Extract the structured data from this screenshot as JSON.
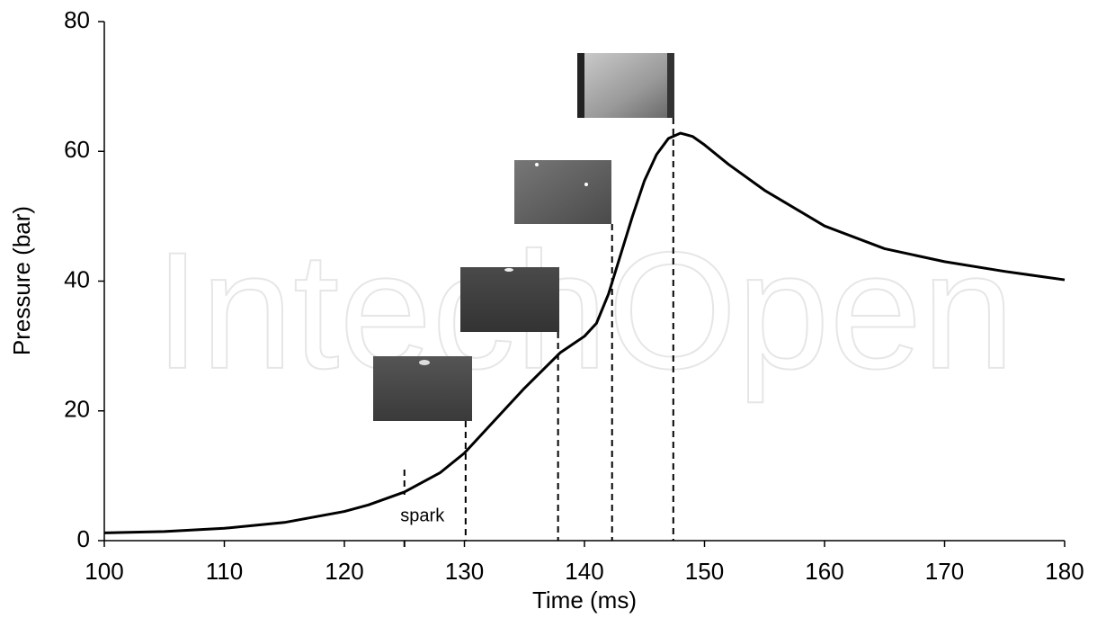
{
  "chart_data": {
    "type": "line",
    "x_label": "Time (ms)",
    "y_label": "Pressure (bar)",
    "xlim": [
      100,
      180
    ],
    "xticks": [
      100,
      110,
      120,
      130,
      140,
      150,
      160,
      170,
      180
    ],
    "ylim": [
      0,
      80
    ],
    "yticks": [
      0,
      20,
      40,
      60,
      80
    ],
    "x": [
      100,
      105,
      110,
      115,
      120,
      122,
      125,
      128,
      130,
      132,
      135,
      138,
      140,
      141,
      142,
      143,
      144,
      145,
      146,
      147,
      148,
      149,
      150,
      152,
      155,
      160,
      165,
      170,
      175,
      180
    ],
    "series": [
      {
        "color": "#000000",
        "values": [
          1.2,
          1.4,
          1.9,
          2.8,
          4.5,
          5.5,
          7.5,
          10.5,
          13.5,
          17.5,
          23.5,
          29,
          31.5,
          33.5,
          38,
          44,
          50,
          55.5,
          59.5,
          62,
          62.8,
          62.3,
          61,
          58,
          54,
          48.5,
          45,
          43,
          41.5,
          40.2
        ]
      }
    ],
    "markers": [
      125,
      130.1,
      137.8,
      142.3,
      147.4
    ],
    "spark_label": "spark",
    "watermark": "IntechOpen"
  }
}
